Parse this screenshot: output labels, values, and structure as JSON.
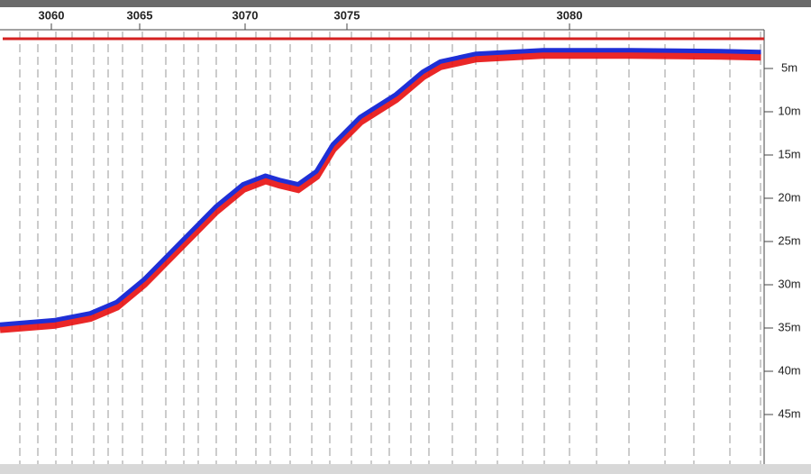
{
  "chart_data": {
    "type": "line",
    "x": [
      3057.1,
      3060.15,
      3062.2,
      3063.7,
      3065.2,
      3066.9,
      3068.6,
      3069.9,
      3071.0,
      3071.7,
      3072.6,
      3073.5,
      3074.3,
      3075.3,
      3076.1,
      3076.7,
      3077.1,
      3077.9,
      3079.4,
      3081.4,
      3083.4,
      3084.3
    ],
    "values": [
      34.6,
      34.1,
      33.3,
      32.0,
      29.4,
      25.2,
      21.0,
      18.4,
      17.4,
      17.9,
      18.4,
      16.9,
      13.8,
      10.6,
      8.0,
      5.4,
      4.2,
      3.3,
      2.9,
      2.9,
      3.0,
      3.1
    ],
    "color": "#1f2fd6",
    "xlim": [
      3057.1,
      3084.37
    ],
    "xticks": [
      3060,
      3065,
      3070,
      3075,
      3080
    ],
    "ylim": [
      0,
      50
    ],
    "y_inverted": true,
    "yticks": [
      {
        "value": 5,
        "label": "5m"
      },
      {
        "value": 10,
        "label": "10m"
      },
      {
        "value": 15,
        "label": "15m"
      },
      {
        "value": 20,
        "label": "20m"
      },
      {
        "value": 25,
        "label": "25m"
      },
      {
        "value": 30,
        "label": "30m"
      },
      {
        "value": 35,
        "label": "35m"
      },
      {
        "value": 40,
        "label": "40m"
      },
      {
        "value": 45,
        "label": "45m"
      }
    ]
  }
}
